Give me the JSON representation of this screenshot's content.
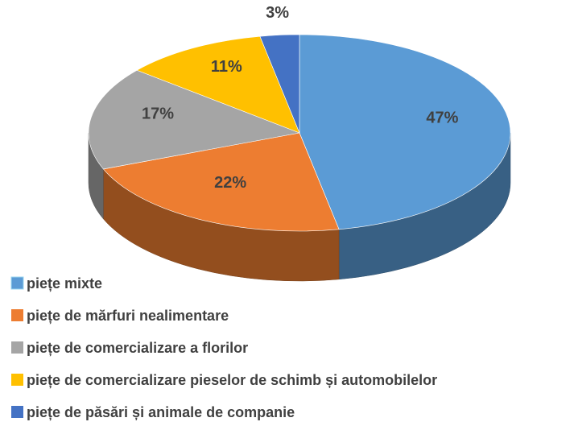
{
  "chart_data": {
    "type": "pie",
    "categories": [
      "piețe mixte",
      "piețe de mărfuri nealimentare",
      "piețe de comercializare a florilor",
      "piețe de comercializare pieselor de schimb și automobilelor",
      "piețe de păsări și animale de companie"
    ],
    "values": [
      47,
      22,
      17,
      11,
      3
    ],
    "value_labels": [
      "47%",
      "22%",
      "17%",
      "11%",
      "3%"
    ],
    "colors": [
      "#5b9bd5",
      "#ed7d31",
      "#a5a5a5",
      "#ffc000",
      "#4472c4"
    ],
    "legend": "bottom-left"
  }
}
